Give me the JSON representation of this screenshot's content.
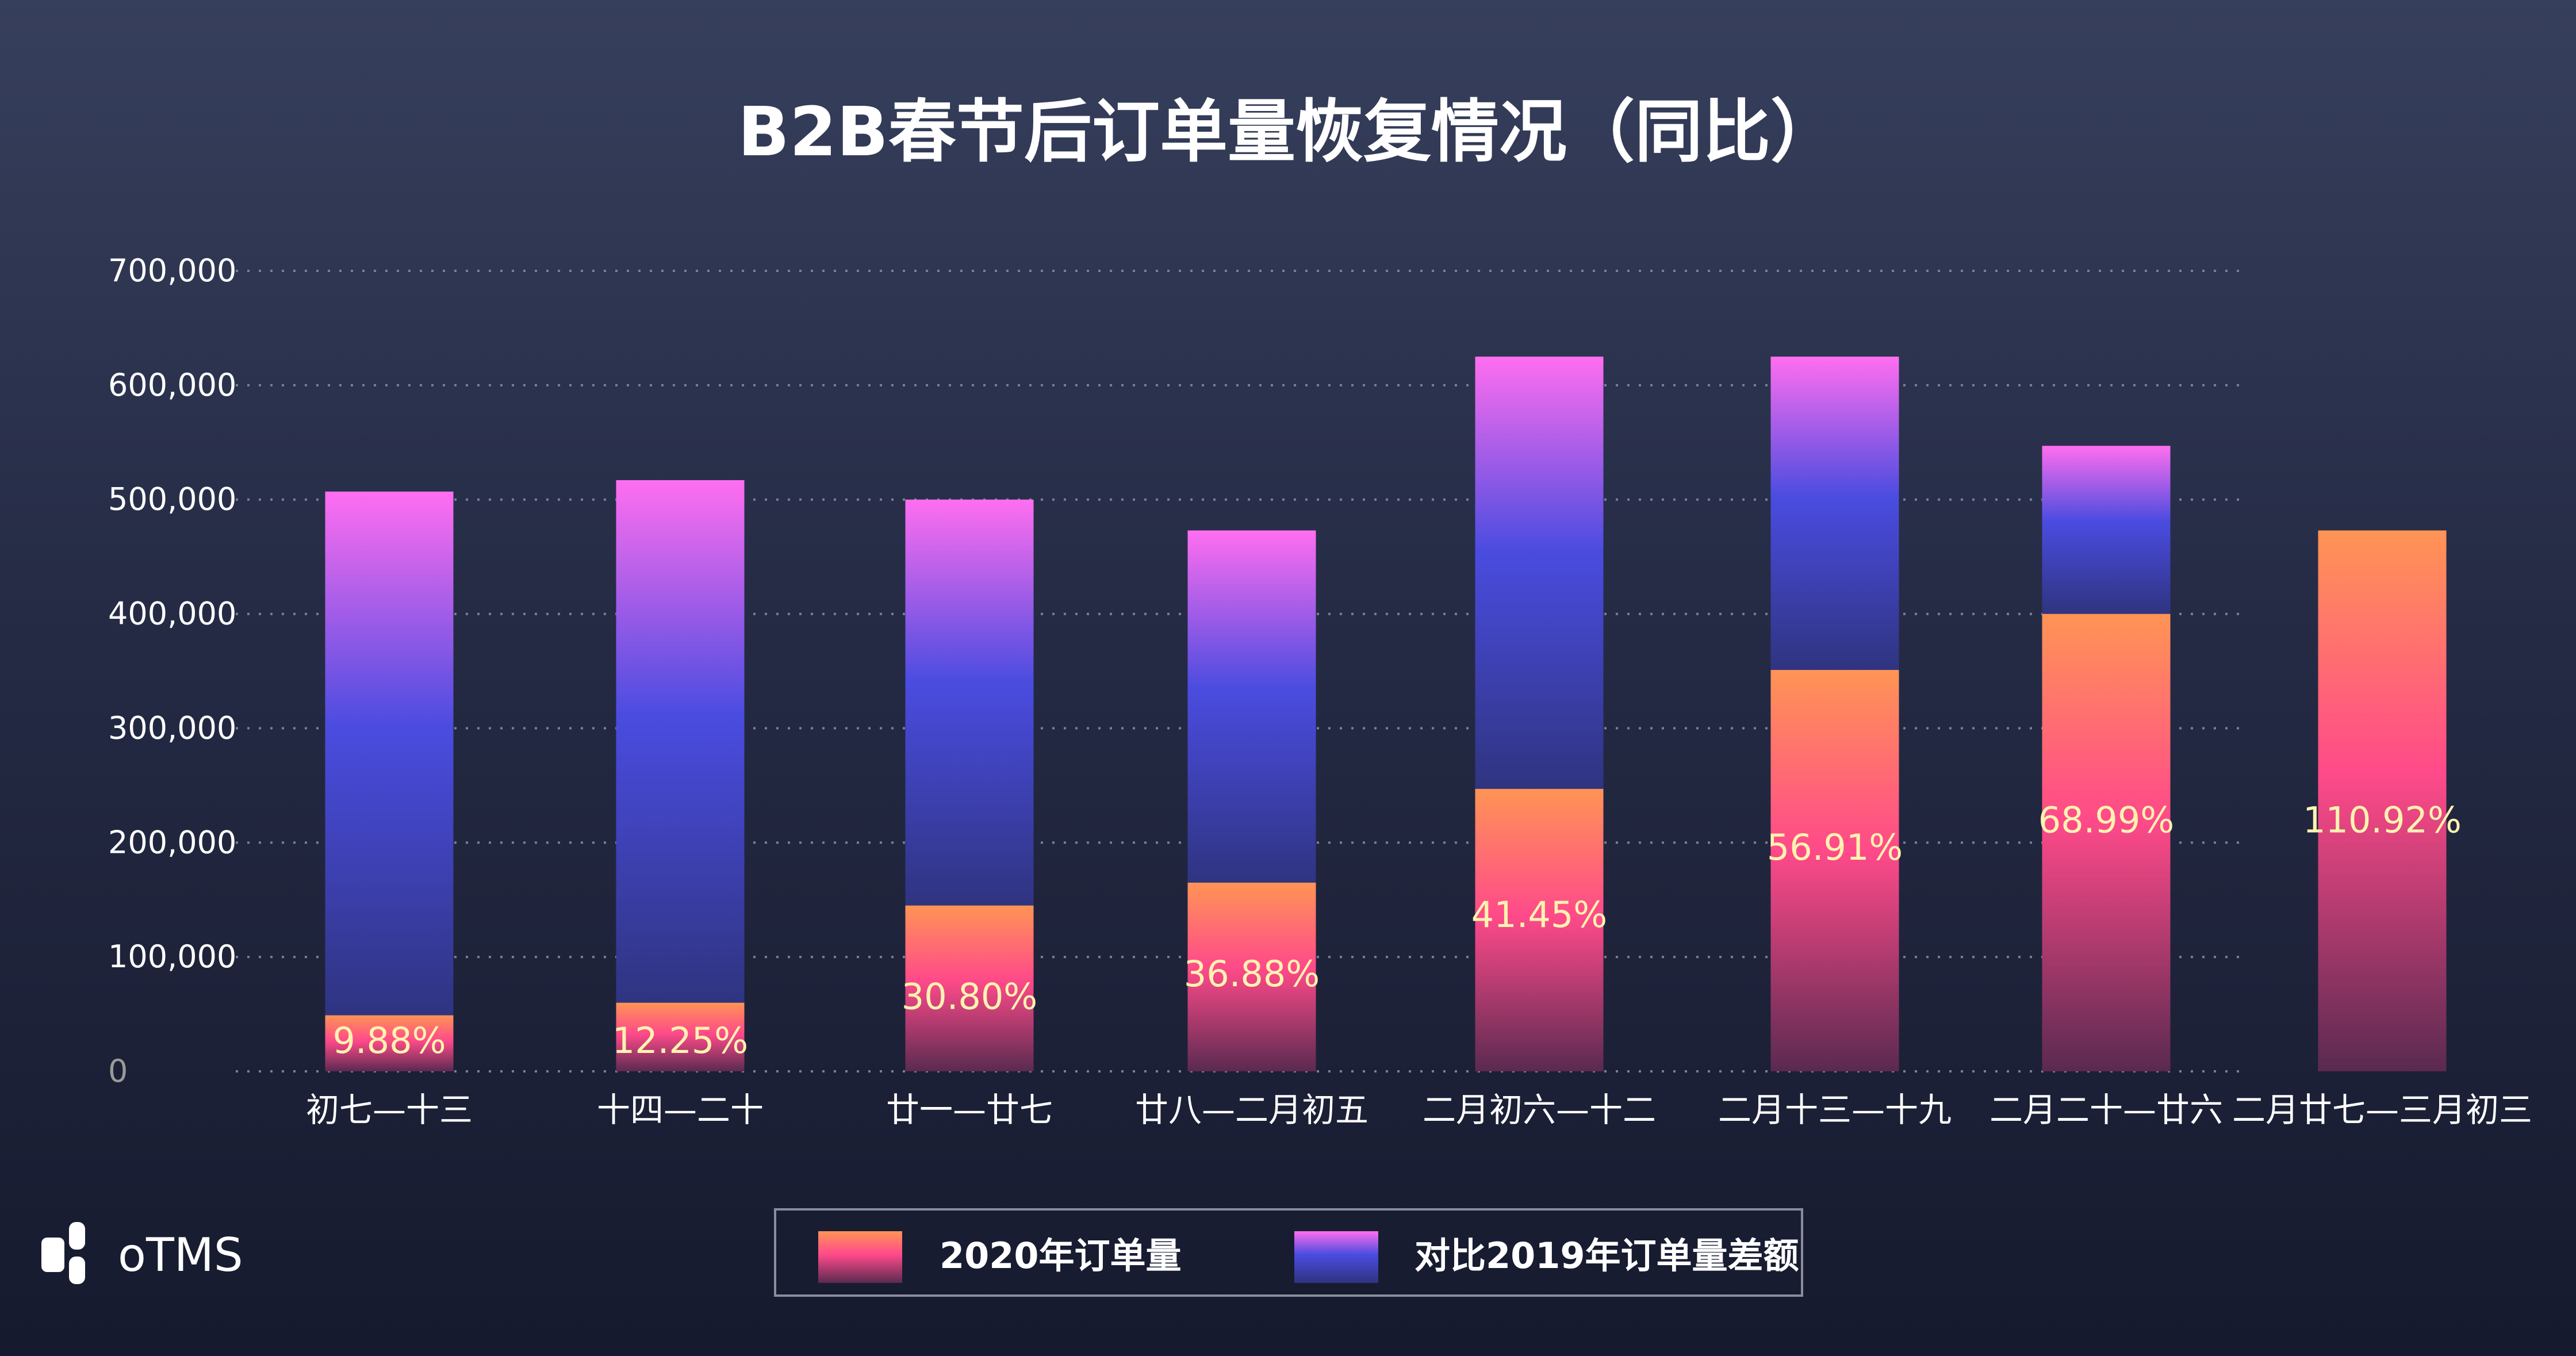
{
  "brand": {
    "logo_text": "oTMS"
  },
  "chart_data": {
    "type": "bar",
    "stacked": true,
    "title": "B2B春节后订单量恢复情况（同比）",
    "categories": [
      "初七—十三",
      "十四—二十",
      "廿一—廿七",
      "廿八—二月初五",
      "二月初六—十二",
      "二月十三—十九",
      "二月二十—廿六",
      "二月廿七—三月初三"
    ],
    "series": [
      {
        "name": "2020年订单量",
        "values": [
          49000,
          60000,
          145000,
          165000,
          247000,
          351000,
          400000,
          473000
        ],
        "gradient": [
          "#ff9455",
          "#ff4a8a",
          "#6a2f5a"
        ]
      },
      {
        "name": "对比2019年订单量差额",
        "values": [
          458000,
          457000,
          355000,
          308000,
          378000,
          274000,
          147000,
          0
        ],
        "gradient": [
          "#ff6ef0",
          "#4a4ce0",
          "#2f3480"
        ]
      }
    ],
    "data_labels": [
      "9.88%",
      "12.25%",
      "30.80%",
      "36.88%",
      "41.45%",
      "56.91%",
      "68.99%",
      "110.92%"
    ],
    "yticks": [
      "0",
      "100,000",
      "200,000",
      "300,000",
      "400,000",
      "500,000",
      "600,000",
      "700,000"
    ],
    "ylim": [
      0,
      700000
    ],
    "grid": true,
    "legend": "bottom-center",
    "label_color": "#fff3b0"
  }
}
